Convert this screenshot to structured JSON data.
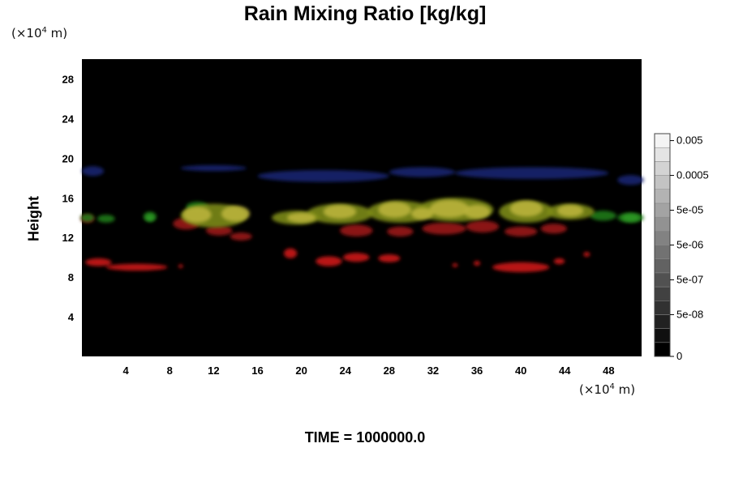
{
  "chart_data": {
    "type": "heatmap",
    "title": "Rain Mixing Ratio [kg/kg]",
    "ylabel": "Height",
    "xlabel": "",
    "x_unit_text": "(×10",
    "x_unit_exp": "4",
    "x_unit_suffix": " m)",
    "y_unit_text": "(×10",
    "y_unit_exp": "4",
    "y_unit_suffix": " m)",
    "xlim": [
      0,
      51
    ],
    "ylim": [
      0,
      30
    ],
    "x_ticks": [
      "4",
      "8",
      "12",
      "16",
      "20",
      "24",
      "28",
      "32",
      "36",
      "40",
      "44",
      "48"
    ],
    "x_tick_values": [
      4,
      8,
      12,
      16,
      20,
      24,
      28,
      32,
      36,
      40,
      44,
      48
    ],
    "y_ticks": [
      "4",
      "8",
      "12",
      "16",
      "20",
      "24",
      "28"
    ],
    "y_tick_values": [
      4,
      8,
      12,
      16,
      20,
      24,
      28
    ],
    "background_color": "#000000",
    "colorbar": {
      "labels": [
        "0.005",
        "0.0005",
        "5e-05",
        "5e-06",
        "5e-07",
        "5e-08",
        "0"
      ],
      "label_levels": [
        15.5,
        13,
        10.5,
        8,
        5.5,
        3,
        0
      ],
      "levels": 16,
      "color_min": "#000000",
      "color_max": "#f4f4f4"
    },
    "layers": [
      {
        "color": "#1a2470",
        "blobs": [
          {
            "x": 1,
            "y": 18.7,
            "w": 1.0,
            "h": 0.5
          },
          {
            "x": 12,
            "y": 19.0,
            "w": 3.0,
            "h": 0.3
          },
          {
            "x": 22,
            "y": 18.2,
            "w": 6.0,
            "h": 0.6
          },
          {
            "x": 31,
            "y": 18.6,
            "w": 3.0,
            "h": 0.5
          },
          {
            "x": 41,
            "y": 18.5,
            "w": 7.0,
            "h": 0.6
          },
          {
            "x": 50,
            "y": 17.8,
            "w": 1.2,
            "h": 0.5
          }
        ]
      },
      {
        "color": "#9a1414",
        "blobs": [
          {
            "x": 0.5,
            "y": 13.9,
            "w": 0.6,
            "h": 0.4
          },
          {
            "x": 9.5,
            "y": 13.4,
            "w": 1.2,
            "h": 0.6
          },
          {
            "x": 12.5,
            "y": 12.7,
            "w": 1.2,
            "h": 0.5
          },
          {
            "x": 14.5,
            "y": 12.1,
            "w": 1.0,
            "h": 0.4
          },
          {
            "x": 25,
            "y": 12.7,
            "w": 1.5,
            "h": 0.6
          },
          {
            "x": 29,
            "y": 12.6,
            "w": 1.2,
            "h": 0.5
          },
          {
            "x": 33,
            "y": 12.9,
            "w": 2.0,
            "h": 0.6
          },
          {
            "x": 36.5,
            "y": 13.1,
            "w": 1.5,
            "h": 0.6
          },
          {
            "x": 40,
            "y": 12.6,
            "w": 1.5,
            "h": 0.5
          },
          {
            "x": 43,
            "y": 12.9,
            "w": 1.2,
            "h": 0.5
          }
        ]
      },
      {
        "color": "#cc1a1a",
        "blobs": [
          {
            "x": 1.5,
            "y": 9.5,
            "w": 1.2,
            "h": 0.4
          },
          {
            "x": 5,
            "y": 9.0,
            "w": 2.8,
            "h": 0.35
          },
          {
            "x": 9,
            "y": 9.1,
            "w": 0.2,
            "h": 0.2
          },
          {
            "x": 19,
            "y": 10.4,
            "w": 0.6,
            "h": 0.5
          },
          {
            "x": 22.5,
            "y": 9.6,
            "w": 1.2,
            "h": 0.5
          },
          {
            "x": 25,
            "y": 10.0,
            "w": 1.2,
            "h": 0.45
          },
          {
            "x": 28,
            "y": 9.9,
            "w": 1.0,
            "h": 0.4
          },
          {
            "x": 34,
            "y": 9.2,
            "w": 0.25,
            "h": 0.2
          },
          {
            "x": 36,
            "y": 9.4,
            "w": 0.3,
            "h": 0.25
          },
          {
            "x": 40,
            "y": 9.0,
            "w": 2.6,
            "h": 0.5
          },
          {
            "x": 43.5,
            "y": 9.6,
            "w": 0.5,
            "h": 0.3
          },
          {
            "x": 46,
            "y": 10.3,
            "w": 0.3,
            "h": 0.25
          }
        ]
      },
      {
        "color": "#1f7a1a",
        "blobs": [
          {
            "x": 0.5,
            "y": 14.0,
            "w": 0.6,
            "h": 0.4
          },
          {
            "x": 2.2,
            "y": 13.9,
            "w": 0.8,
            "h": 0.4
          },
          {
            "x": 6.2,
            "y": 14.1,
            "w": 0.6,
            "h": 0.5
          },
          {
            "x": 10.5,
            "y": 15.1,
            "w": 1.0,
            "h": 0.5
          },
          {
            "x": 50,
            "y": 14.0,
            "w": 1.2,
            "h": 0.5
          },
          {
            "x": 47.5,
            "y": 14.2,
            "w": 1.2,
            "h": 0.5
          }
        ]
      },
      {
        "color": "#7c8a14",
        "blobs": [
          {
            "x": 12,
            "y": 14.2,
            "w": 3.0,
            "h": 1.2
          },
          {
            "x": 19.5,
            "y": 14.0,
            "w": 2.2,
            "h": 0.7
          },
          {
            "x": 23.5,
            "y": 14.4,
            "w": 3.0,
            "h": 1.0
          },
          {
            "x": 29,
            "y": 14.6,
            "w": 3.0,
            "h": 1.1
          },
          {
            "x": 34,
            "y": 14.8,
            "w": 3.5,
            "h": 1.2
          },
          {
            "x": 40.5,
            "y": 14.6,
            "w": 2.5,
            "h": 1.1
          },
          {
            "x": 44.5,
            "y": 14.6,
            "w": 2.2,
            "h": 0.8
          }
        ]
      },
      {
        "color": "#b9b23a",
        "blobs": [
          {
            "x": 10.5,
            "y": 14.3,
            "w": 1.3,
            "h": 0.8
          },
          {
            "x": 14,
            "y": 14.4,
            "w": 1.3,
            "h": 0.8
          },
          {
            "x": 20,
            "y": 14.0,
            "w": 1.3,
            "h": 0.5
          },
          {
            "x": 23.5,
            "y": 14.6,
            "w": 1.5,
            "h": 0.7
          },
          {
            "x": 28.5,
            "y": 14.8,
            "w": 1.5,
            "h": 0.8
          },
          {
            "x": 31,
            "y": 14.4,
            "w": 1.0,
            "h": 0.6
          },
          {
            "x": 33.5,
            "y": 14.9,
            "w": 1.8,
            "h": 0.9
          },
          {
            "x": 36,
            "y": 14.6,
            "w": 1.2,
            "h": 0.7
          },
          {
            "x": 40.5,
            "y": 14.9,
            "w": 1.5,
            "h": 0.8
          },
          {
            "x": 44.5,
            "y": 14.7,
            "w": 1.2,
            "h": 0.6
          }
        ]
      },
      {
        "color": "#2b9a22",
        "blobs": [
          {
            "x": 50,
            "y": 14.0,
            "w": 0.8,
            "h": 0.4
          },
          {
            "x": 6.2,
            "y": 14.0,
            "w": 0.4,
            "h": 0.35
          }
        ]
      }
    ]
  },
  "footer": {
    "time_label": "TIME = 1000000.0"
  }
}
